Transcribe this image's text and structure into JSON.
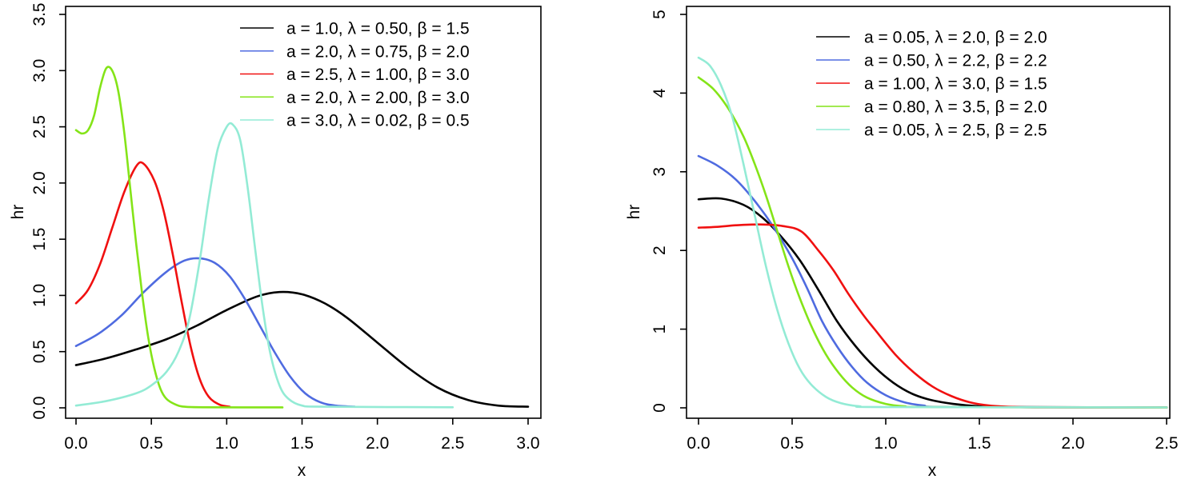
{
  "figure": {
    "background": "#ffffff",
    "text_color": "#000000"
  },
  "chart_data": [
    {
      "type": "line",
      "title": "",
      "xlabel": "x",
      "ylabel": "hr",
      "xlim": [
        0,
        3.0
      ],
      "ylim": [
        0,
        3.5
      ],
      "grid": false,
      "legend_position": "top-right-inside",
      "x_tick_labels": [
        "0.0",
        "0.5",
        "1.0",
        "1.5",
        "2.0",
        "2.5",
        "3.0"
      ],
      "x_tick_values": [
        0,
        0.5,
        1.0,
        1.5,
        2.0,
        2.5,
        3.0
      ],
      "y_tick_labels": [
        "0.0",
        "0.5",
        "1.0",
        "1.5",
        "2.0",
        "2.5",
        "3.0",
        "3.5"
      ],
      "y_tick_values": [
        0,
        0.5,
        1.0,
        1.5,
        2.0,
        2.5,
        3.0,
        3.5
      ],
      "series": [
        {
          "label": "a = 1.0,  λ = 0.50,  β = 1.5",
          "params": {
            "a": "1.0",
            "lambda": "0.50",
            "beta": "1.5"
          },
          "color": "#000000",
          "points": [
            [
              0,
              0.38
            ],
            [
              0.2,
              0.44
            ],
            [
              0.4,
              0.52
            ],
            [
              0.6,
              0.61
            ],
            [
              0.8,
              0.73
            ],
            [
              1.0,
              0.87
            ],
            [
              1.2,
              0.99
            ],
            [
              1.35,
              1.03
            ],
            [
              1.5,
              1.01
            ],
            [
              1.65,
              0.93
            ],
            [
              1.8,
              0.8
            ],
            [
              2.0,
              0.58
            ],
            [
              2.2,
              0.36
            ],
            [
              2.4,
              0.18
            ],
            [
              2.6,
              0.07
            ],
            [
              2.8,
              0.02
            ],
            [
              3.0,
              0.01
            ]
          ]
        },
        {
          "label": "a = 2.0,  λ = 0.75,  β = 2.0",
          "params": {
            "a": "2.0",
            "lambda": "0.75",
            "beta": "2.0"
          },
          "color": "#4F6BE0",
          "points": [
            [
              0,
              0.55
            ],
            [
              0.15,
              0.66
            ],
            [
              0.3,
              0.82
            ],
            [
              0.45,
              1.03
            ],
            [
              0.6,
              1.21
            ],
            [
              0.72,
              1.31
            ],
            [
              0.82,
              1.33
            ],
            [
              0.92,
              1.29
            ],
            [
              1.02,
              1.17
            ],
            [
              1.12,
              0.97
            ],
            [
              1.22,
              0.73
            ],
            [
              1.32,
              0.49
            ],
            [
              1.42,
              0.28
            ],
            [
              1.52,
              0.13
            ],
            [
              1.62,
              0.05
            ],
            [
              1.72,
              0.02
            ],
            [
              1.85,
              0.01
            ]
          ]
        },
        {
          "label": "a = 2.5,  λ = 1.00,  β = 3.0",
          "params": {
            "a": "2.5",
            "lambda": "1.00",
            "beta": "3.0"
          },
          "color": "#F01010",
          "points": [
            [
              0,
              0.93
            ],
            [
              0.08,
              1.05
            ],
            [
              0.16,
              1.28
            ],
            [
              0.24,
              1.6
            ],
            [
              0.32,
              1.92
            ],
            [
              0.4,
              2.15
            ],
            [
              0.45,
              2.17
            ],
            [
              0.52,
              2.02
            ],
            [
              0.58,
              1.76
            ],
            [
              0.64,
              1.38
            ],
            [
              0.7,
              0.95
            ],
            [
              0.76,
              0.55
            ],
            [
              0.82,
              0.26
            ],
            [
              0.88,
              0.1
            ],
            [
              0.95,
              0.03
            ],
            [
              1.02,
              0.01
            ]
          ]
        },
        {
          "label": "a = 2.0,  λ = 2.00,  β = 3.0",
          "params": {
            "a": "2.0",
            "lambda": "2.00",
            "beta": "3.0"
          },
          "color": "#84E418",
          "points": [
            [
              0,
              2.47
            ],
            [
              0.04,
              2.44
            ],
            [
              0.08,
              2.47
            ],
            [
              0.12,
              2.6
            ],
            [
              0.16,
              2.85
            ],
            [
              0.2,
              3.02
            ],
            [
              0.24,
              3.0
            ],
            [
              0.28,
              2.82
            ],
            [
              0.32,
              2.45
            ],
            [
              0.36,
              1.95
            ],
            [
              0.4,
              1.45
            ],
            [
              0.44,
              1.0
            ],
            [
              0.48,
              0.62
            ],
            [
              0.52,
              0.35
            ],
            [
              0.56,
              0.17
            ],
            [
              0.6,
              0.08
            ],
            [
              0.66,
              0.03
            ],
            [
              0.72,
              0.01
            ],
            [
              0.85,
              0.005
            ],
            [
              1.37,
              0.004
            ]
          ]
        },
        {
          "label": "a = 3.0,  λ = 0.02,  β = 0.5",
          "params": {
            "a": "3.0",
            "lambda": "0.02",
            "beta": "0.5"
          },
          "color": "#93EBD5",
          "points": [
            [
              0,
              0.02
            ],
            [
              0.2,
              0.06
            ],
            [
              0.4,
              0.13
            ],
            [
              0.5,
              0.2
            ],
            [
              0.6,
              0.32
            ],
            [
              0.68,
              0.5
            ],
            [
              0.75,
              0.78
            ],
            [
              0.82,
              1.3
            ],
            [
              0.88,
              1.85
            ],
            [
              0.94,
              2.3
            ],
            [
              1.0,
              2.5
            ],
            [
              1.04,
              2.52
            ],
            [
              1.09,
              2.38
            ],
            [
              1.14,
              1.95
            ],
            [
              1.19,
              1.4
            ],
            [
              1.24,
              0.88
            ],
            [
              1.29,
              0.48
            ],
            [
              1.35,
              0.2
            ],
            [
              1.41,
              0.08
            ],
            [
              1.5,
              0.02
            ],
            [
              1.65,
              0.01
            ],
            [
              2.5,
              0.005
            ]
          ]
        }
      ]
    },
    {
      "type": "line",
      "title": "",
      "xlabel": "x",
      "ylabel": "hr",
      "xlim": [
        0,
        2.5
      ],
      "ylim": [
        0,
        5
      ],
      "grid": false,
      "legend_position": "top-right-inside",
      "x_tick_labels": [
        "0.0",
        "0.5",
        "1.0",
        "1.5",
        "2.0",
        "2.5"
      ],
      "x_tick_values": [
        0,
        0.5,
        1.0,
        1.5,
        2.0,
        2.5
      ],
      "y_tick_labels": [
        "0",
        "1",
        "2",
        "3",
        "4",
        "5"
      ],
      "y_tick_values": [
        0,
        1,
        2,
        3,
        4,
        5
      ],
      "series": [
        {
          "label": "a = 0.05,  λ = 2.0,  β = 2.0",
          "params": {
            "a": "0.05",
            "lambda": "2.0",
            "beta": "2.0"
          },
          "color": "#000000",
          "points": [
            [
              0,
              2.65
            ],
            [
              0.12,
              2.66
            ],
            [
              0.24,
              2.58
            ],
            [
              0.34,
              2.42
            ],
            [
              0.44,
              2.18
            ],
            [
              0.54,
              1.88
            ],
            [
              0.64,
              1.5
            ],
            [
              0.74,
              1.1
            ],
            [
              0.84,
              0.78
            ],
            [
              0.94,
              0.52
            ],
            [
              1.04,
              0.32
            ],
            [
              1.14,
              0.18
            ],
            [
              1.24,
              0.1
            ],
            [
              1.36,
              0.05
            ],
            [
              1.5,
              0.02
            ],
            [
              1.7,
              0.01
            ],
            [
              2.5,
              0.005
            ]
          ]
        },
        {
          "label": "a = 0.50,  λ = 2.2,  β = 2.2",
          "params": {
            "a": "0.50",
            "lambda": "2.2",
            "beta": "2.2"
          },
          "color": "#4F6BE0",
          "points": [
            [
              0,
              3.2
            ],
            [
              0.1,
              3.08
            ],
            [
              0.2,
              2.9
            ],
            [
              0.3,
              2.63
            ],
            [
              0.4,
              2.3
            ],
            [
              0.5,
              1.9
            ],
            [
              0.58,
              1.52
            ],
            [
              0.66,
              1.1
            ],
            [
              0.74,
              0.78
            ],
            [
              0.82,
              0.52
            ],
            [
              0.9,
              0.32
            ],
            [
              1.0,
              0.16
            ],
            [
              1.1,
              0.07
            ],
            [
              1.2,
              0.03
            ],
            [
              1.35,
              0.01
            ],
            [
              2.5,
              0.005
            ]
          ]
        },
        {
          "label": "a = 1.00,  λ = 3.0,  β = 1.5",
          "params": {
            "a": "1.00",
            "lambda": "3.0",
            "beta": "1.5"
          },
          "color": "#F01010",
          "points": [
            [
              0,
              2.29
            ],
            [
              0.1,
              2.3
            ],
            [
              0.2,
              2.32
            ],
            [
              0.33,
              2.33
            ],
            [
              0.45,
              2.31
            ],
            [
              0.55,
              2.24
            ],
            [
              0.64,
              2.0
            ],
            [
              0.72,
              1.75
            ],
            [
              0.8,
              1.45
            ],
            [
              0.88,
              1.18
            ],
            [
              0.94,
              1.0
            ],
            [
              1.05,
              0.68
            ],
            [
              1.15,
              0.45
            ],
            [
              1.25,
              0.27
            ],
            [
              1.35,
              0.15
            ],
            [
              1.45,
              0.07
            ],
            [
              1.55,
              0.03
            ],
            [
              1.7,
              0.01
            ],
            [
              1.9,
              0.005
            ],
            [
              2.5,
              0.004
            ]
          ]
        },
        {
          "label": "a = 0.80,  λ = 3.5,  β = 2.0",
          "params": {
            "a": "0.80",
            "lambda": "3.5",
            "beta": "2.0"
          },
          "color": "#84E418",
          "points": [
            [
              0,
              4.2
            ],
            [
              0.08,
              4.05
            ],
            [
              0.16,
              3.8
            ],
            [
              0.24,
              3.45
            ],
            [
              0.3,
              3.1
            ],
            [
              0.36,
              2.7
            ],
            [
              0.42,
              2.25
            ],
            [
              0.48,
              1.8
            ],
            [
              0.54,
              1.4
            ],
            [
              0.61,
              1.0
            ],
            [
              0.68,
              0.68
            ],
            [
              0.75,
              0.44
            ],
            [
              0.82,
              0.26
            ],
            [
              0.9,
              0.13
            ],
            [
              1.0,
              0.05
            ],
            [
              1.1,
              0.02
            ],
            [
              1.25,
              0.01
            ],
            [
              2.5,
              0.004
            ]
          ]
        },
        {
          "label": "a = 0.05,  λ = 2.5,  β = 2.5",
          "params": {
            "a": "0.05",
            "lambda": "2.5",
            "beta": "2.5"
          },
          "color": "#93EBD5",
          "points": [
            [
              0,
              4.45
            ],
            [
              0.06,
              4.35
            ],
            [
              0.12,
              4.1
            ],
            [
              0.18,
              3.7
            ],
            [
              0.24,
              3.1
            ],
            [
              0.3,
              2.45
            ],
            [
              0.36,
              1.8
            ],
            [
              0.42,
              1.25
            ],
            [
              0.48,
              0.82
            ],
            [
              0.54,
              0.5
            ],
            [
              0.6,
              0.3
            ],
            [
              0.68,
              0.14
            ],
            [
              0.76,
              0.06
            ],
            [
              0.86,
              0.02
            ],
            [
              1.0,
              0.01
            ],
            [
              2.5,
              0.005
            ]
          ]
        }
      ]
    }
  ]
}
